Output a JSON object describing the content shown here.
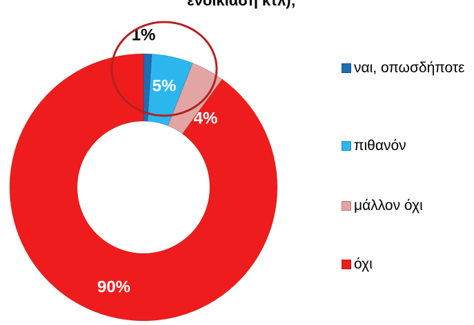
{
  "chart_data": {
    "type": "donut",
    "title": "ενοικίαση κτλ);",
    "categories": [
      "ναι, οπωσδήποτε",
      "πιθανόν",
      "μάλλον όχι",
      "όχι"
    ],
    "values": [
      1,
      5,
      4,
      90
    ],
    "value_labels": [
      "1%",
      "5%",
      "4%",
      "90%"
    ],
    "colors": [
      "#1f6db4",
      "#2bb7ee",
      "#e3a4a4",
      "#ee1c1c"
    ],
    "legend": "right"
  }
}
